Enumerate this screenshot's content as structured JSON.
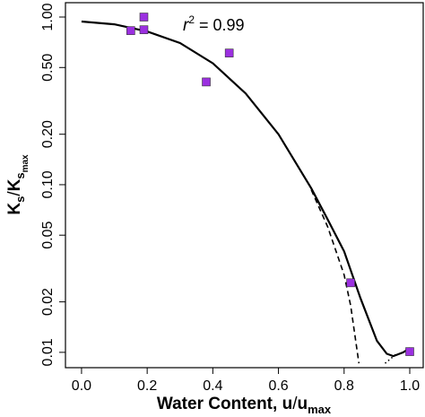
{
  "chart_data": {
    "type": "scatter",
    "annotation": {
      "var": "r",
      "sup": "2",
      "rest": " = 0.99"
    },
    "xlabel": {
      "text": "Water Content, u",
      "sep": "/",
      "u": "u",
      "sub": "max"
    },
    "ylabel": {
      "k1": "K",
      "s1": "s",
      "sep": "/",
      "k2": "K",
      "s2": "s",
      "sub": "max"
    },
    "log_y": true,
    "xlim": [
      -0.049,
      1.041
    ],
    "ylim": [
      0.0081,
      1.218
    ],
    "xticks": [
      {
        "value": 0,
        "label": "0.0"
      },
      0.2,
      0.4,
      0.6,
      0.8,
      {
        "value": 1,
        "label": "1.0"
      }
    ],
    "yticks": [
      {
        "value": 1,
        "label": "1.00"
      },
      {
        "value": 0.5,
        "label": "0.50"
      },
      {
        "value": 0.2,
        "label": "0.20"
      },
      {
        "value": 0.1,
        "label": "0.10"
      },
      0.05,
      0.02,
      0.01
    ],
    "points": {
      "color": "#9b30e0",
      "x": [
        0.15,
        0.19,
        0.19,
        0.38,
        0.45,
        0.82,
        1.0
      ],
      "values": [
        0.83,
        1.0,
        0.84,
        0.41,
        0.61,
        0.026,
        0.0101
      ]
    },
    "lines": [
      {
        "style": "solid",
        "color": "#000000",
        "x": [
          0,
          0.1,
          0.2,
          0.3,
          0.4,
          0.5,
          0.6,
          0.7,
          0.75,
          0.8,
          0.85,
          0.9,
          0.93,
          0.95,
          0.98,
          1.0
        ],
        "values": [
          0.94,
          0.905,
          0.82,
          0.7,
          0.53,
          0.35,
          0.2,
          0.095,
          0.062,
          0.04,
          0.021,
          0.0117,
          0.0098,
          0.0095,
          0.01,
          0.0106
        ]
      },
      {
        "style": "dashed",
        "color": "#000000",
        "x": [
          0.7,
          0.75,
          0.8,
          0.82,
          0.845
        ],
        "values": [
          0.093,
          0.056,
          0.029,
          0.019,
          0.0086
        ]
      },
      {
        "style": "dotted",
        "color": "#000000",
        "x": [
          0.925,
          0.96
        ],
        "values": [
          0.0086,
          0.0098
        ]
      }
    ]
  }
}
